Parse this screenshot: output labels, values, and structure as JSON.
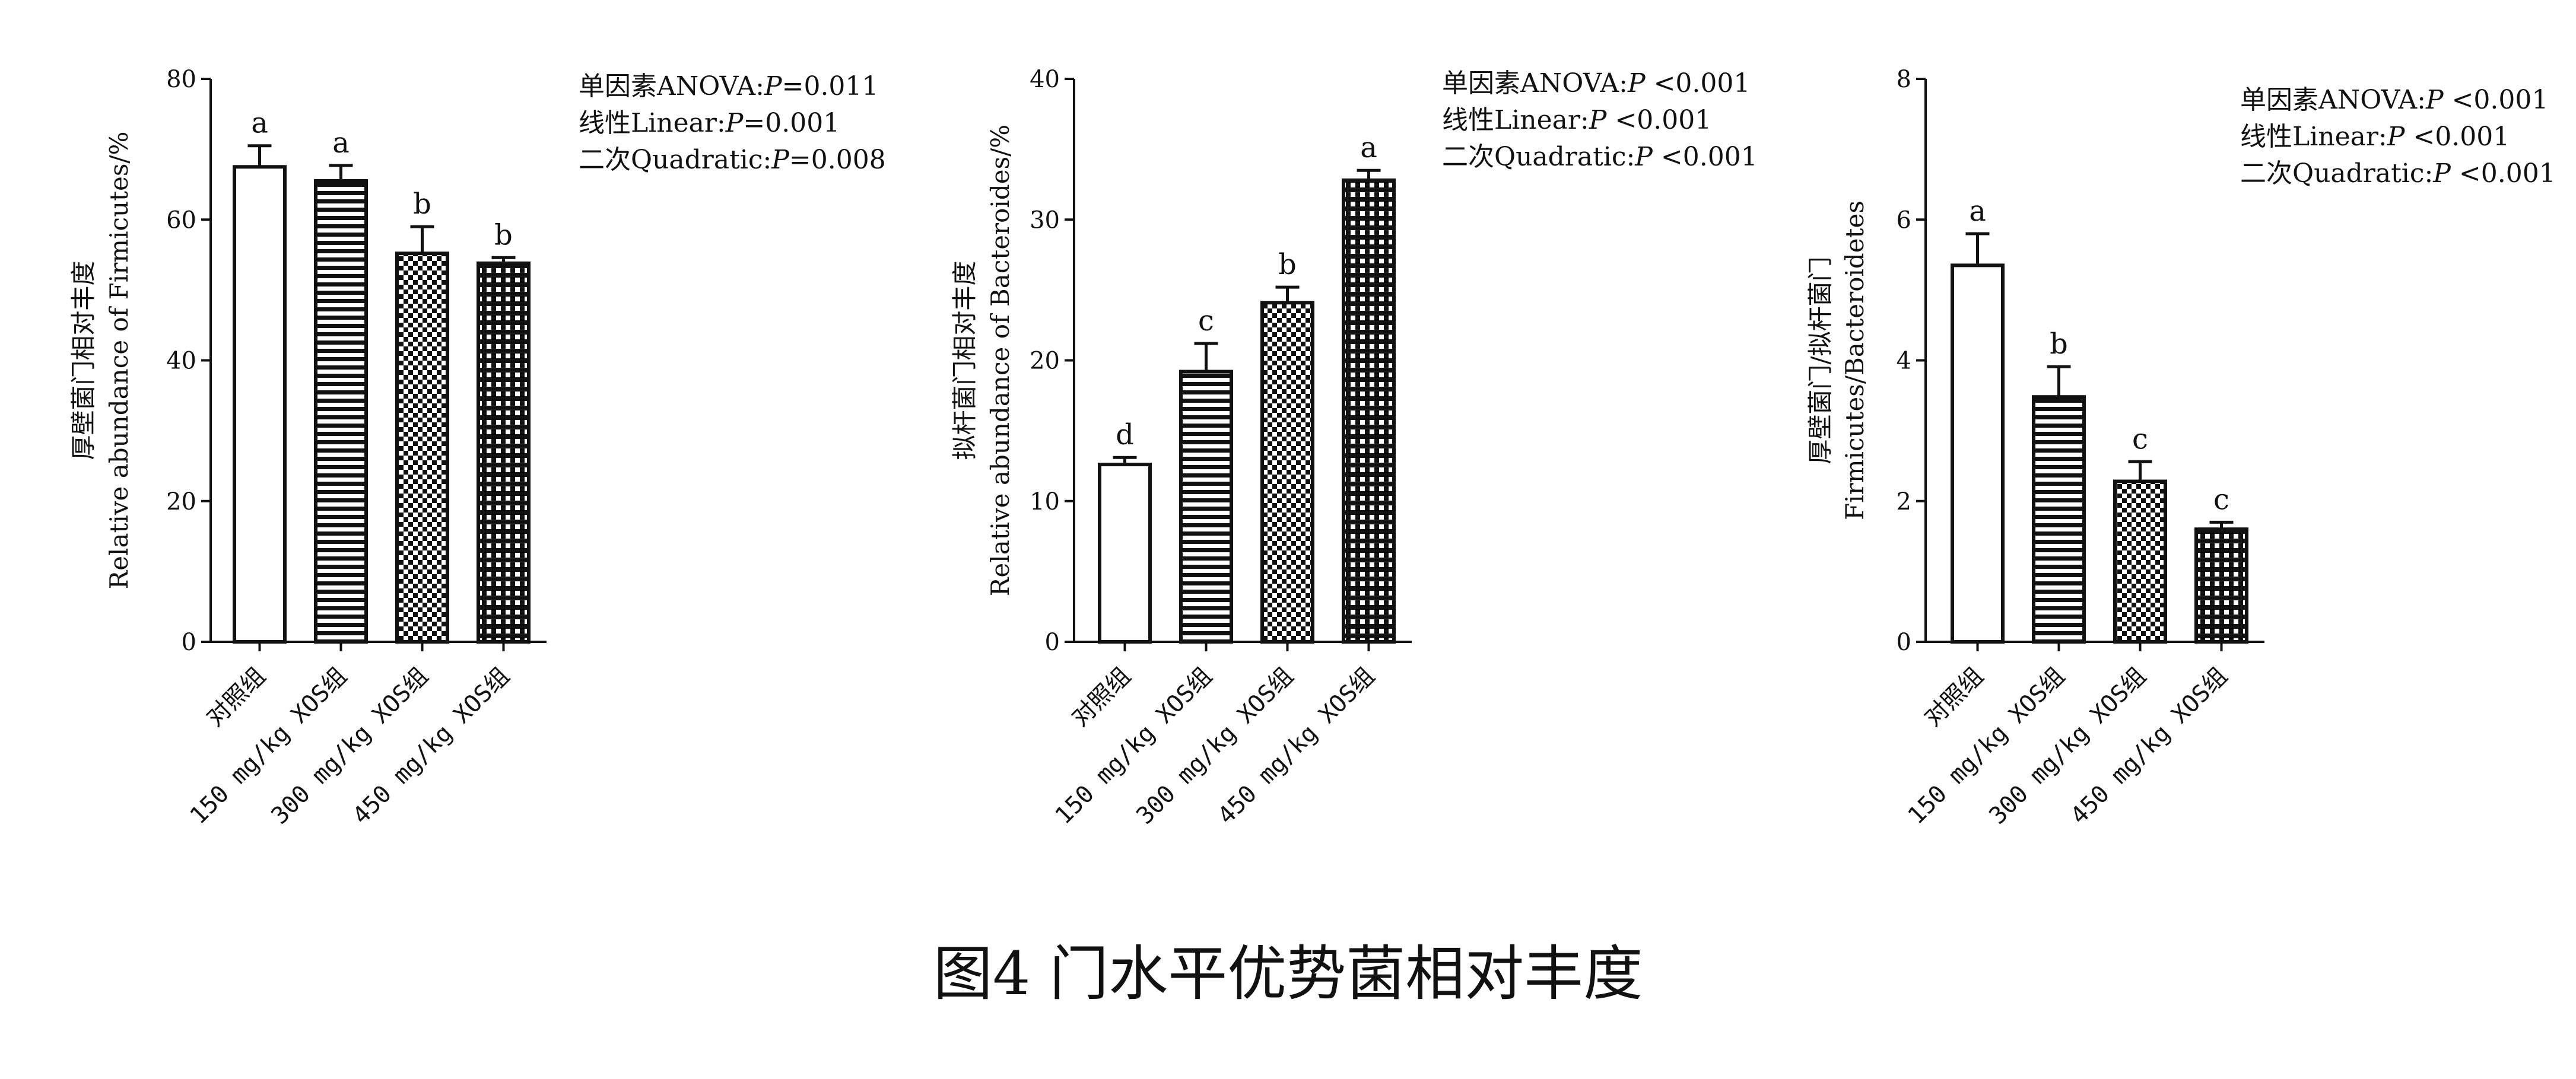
{
  "figure_caption": "图4 门水平优势菌相对丰度",
  "chart_data": [
    {
      "type": "bar",
      "categories": [
        "对照组",
        "150 mg/kg XOS组",
        "300 mg/kg XOS组",
        "450 mg/kg XOS组"
      ],
      "values": [
        67.5,
        65.5,
        55.2,
        53.8
      ],
      "errors": [
        3.0,
        2.2,
        3.8,
        0.8
      ],
      "letters": [
        "a",
        "a",
        "b",
        "b"
      ],
      "patterns": [
        "solid-white",
        "horizontal-lines",
        "checker",
        "grid"
      ],
      "ylabel_lines": [
        "厚壁菌门相对丰度",
        "Relative abundance of Firmicutes/%"
      ],
      "ylim": [
        0,
        80
      ],
      "yticks": [
        0,
        20,
        40,
        60,
        80
      ],
      "stats": [
        "单因素ANOVA:P=0.011",
        "线性Linear:P=0.001",
        "二次Quadratic:P=0.008"
      ]
    },
    {
      "type": "bar",
      "categories": [
        "对照组",
        "150 mg/kg XOS组",
        "300 mg/kg XOS组",
        "450 mg/kg XOS组"
      ],
      "values": [
        12.6,
        19.2,
        24.1,
        32.8
      ],
      "errors": [
        0.5,
        2.0,
        1.1,
        0.7
      ],
      "letters": [
        "d",
        "c",
        "b",
        "a"
      ],
      "patterns": [
        "solid-white",
        "horizontal-lines",
        "checker",
        "grid"
      ],
      "ylabel_lines": [
        "拟杆菌门相对丰度",
        "Relative abundance of Bacteroides/%"
      ],
      "ylim": [
        0,
        40
      ],
      "yticks": [
        0,
        10,
        20,
        30,
        40
      ],
      "stats": [
        "单因素ANOVA:P <0.001",
        "线性Linear:P <0.001",
        "二次Quadratic:P <0.001"
      ]
    },
    {
      "type": "bar",
      "categories": [
        "对照组",
        "150 mg/kg XOS组",
        "300 mg/kg XOS组",
        "450 mg/kg XOS组"
      ],
      "values": [
        5.35,
        3.48,
        2.28,
        1.6
      ],
      "errors": [
        0.45,
        0.43,
        0.28,
        0.1
      ],
      "letters": [
        "a",
        "b",
        "c",
        "c"
      ],
      "patterns": [
        "solid-white",
        "horizontal-lines",
        "checker",
        "grid"
      ],
      "ylabel_lines": [
        "厚壁菌门/拟杆菌门",
        "Firmicutes/Bacteroidetes"
      ],
      "ylim": [
        0,
        8
      ],
      "yticks": [
        0,
        2,
        4,
        6,
        8
      ],
      "stats": [
        "单因素ANOVA:P <0.001",
        "线性Linear:P <0.001",
        "二次Quadratic:P <0.001"
      ]
    }
  ]
}
